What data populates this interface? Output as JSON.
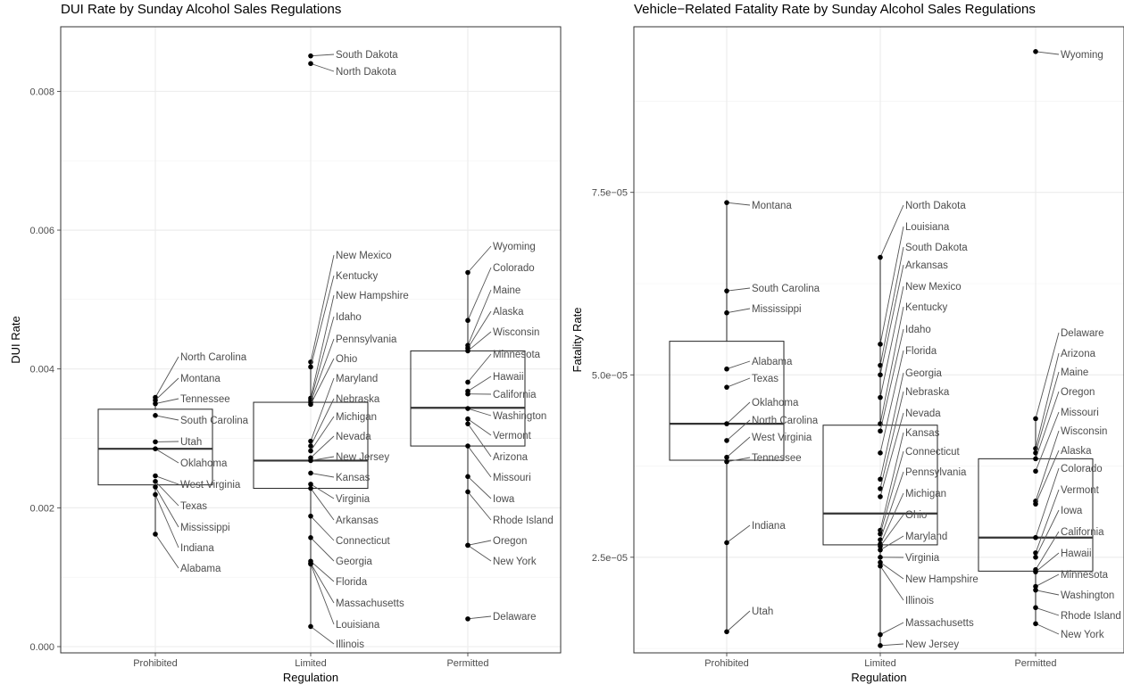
{
  "chart_data": [
    {
      "type": "boxplot",
      "title": "DUI Rate by Sunday Alcohol Sales Regulations",
      "xlabel": "Regulation",
      "ylabel": "DUI Rate",
      "categories": [
        "Prohibited",
        "Limited",
        "Permitted"
      ],
      "ylim": [
        -9e-05,
        0.00893
      ],
      "yticks": [
        {
          "value": 0.0,
          "label": "0.000"
        },
        {
          "value": 0.002,
          "label": "0.002"
        },
        {
          "value": 0.004,
          "label": "0.004"
        },
        {
          "value": 0.006,
          "label": "0.006"
        },
        {
          "value": 0.008,
          "label": "0.008"
        }
      ],
      "boxes": [
        {
          "category": "Prohibited",
          "q1": 0.00233,
          "median": 0.00285,
          "q3": 0.00342,
          "whisker_low": 0.00162,
          "whisker_high": 0.00359
        },
        {
          "category": "Limited",
          "q1": 0.00228,
          "median": 0.00268,
          "q3": 0.00352,
          "whisker_low": 0.00029,
          "whisker_high": 0.0041
        },
        {
          "category": "Permitted",
          "q1": 0.00289,
          "median": 0.00344,
          "q3": 0.00426,
          "whisker_low": 0.00146,
          "whisker_high": 0.00539
        }
      ],
      "points": [
        {
          "category": "Prohibited",
          "label": "North Carolina",
          "value": 0.00359
        },
        {
          "category": "Prohibited",
          "label": "Montana",
          "value": 0.00355
        },
        {
          "category": "Prohibited",
          "label": "Tennessee",
          "value": 0.0035
        },
        {
          "category": "Prohibited",
          "label": "South Carolina",
          "value": 0.00333
        },
        {
          "category": "Prohibited",
          "label": "Utah",
          "value": 0.00295
        },
        {
          "category": "Prohibited",
          "label": "Oklahoma",
          "value": 0.00285
        },
        {
          "category": "Prohibited",
          "label": "West Virginia",
          "value": 0.00246
        },
        {
          "category": "Prohibited",
          "label": "Texas",
          "value": 0.00238
        },
        {
          "category": "Prohibited",
          "label": "Mississippi",
          "value": 0.0023
        },
        {
          "category": "Prohibited",
          "label": "Indiana",
          "value": 0.00219
        },
        {
          "category": "Prohibited",
          "label": "Alabama",
          "value": 0.00162
        },
        {
          "category": "Limited",
          "label": "South Dakota",
          "value": 0.00851
        },
        {
          "category": "Limited",
          "label": "North Dakota",
          "value": 0.0084
        },
        {
          "category": "Limited",
          "label": "New Mexico",
          "value": 0.0041
        },
        {
          "category": "Limited",
          "label": "Kentucky",
          "value": 0.00403
        },
        {
          "category": "Limited",
          "label": "New Hampshire",
          "value": 0.00358
        },
        {
          "category": "Limited",
          "label": "Idaho",
          "value": 0.00355
        },
        {
          "category": "Limited",
          "label": "Pennsylvania",
          "value": 0.00352
        },
        {
          "category": "Limited",
          "label": "Ohio",
          "value": 0.00349
        },
        {
          "category": "Limited",
          "label": "Maryland",
          "value": 0.00296
        },
        {
          "category": "Limited",
          "label": "Nebraska",
          "value": 0.00289
        },
        {
          "category": "Limited",
          "label": "Michigan",
          "value": 0.00282
        },
        {
          "category": "Limited",
          "label": "Nevada",
          "value": 0.00272
        },
        {
          "category": "Limited",
          "label": "New Jersey",
          "value": 0.00268
        },
        {
          "category": "Limited",
          "label": "Kansas",
          "value": 0.0025
        },
        {
          "category": "Limited",
          "label": "Virginia",
          "value": 0.00234
        },
        {
          "category": "Limited",
          "label": "Arkansas",
          "value": 0.00228
        },
        {
          "category": "Limited",
          "label": "Connecticut",
          "value": 0.00188
        },
        {
          "category": "Limited",
          "label": "Georgia",
          "value": 0.00157
        },
        {
          "category": "Limited",
          "label": "Florida",
          "value": 0.00123
        },
        {
          "category": "Limited",
          "label": "Massachusetts",
          "value": 0.0012
        },
        {
          "category": "Limited",
          "label": "Louisiana",
          "value": 0.00119
        },
        {
          "category": "Limited",
          "label": "Illinois",
          "value": 0.00029
        },
        {
          "category": "Permitted",
          "label": "Wyoming",
          "value": 0.00539
        },
        {
          "category": "Permitted",
          "label": "Colorado",
          "value": 0.0047
        },
        {
          "category": "Permitted",
          "label": "Maine",
          "value": 0.00434
        },
        {
          "category": "Permitted",
          "label": "Alaska",
          "value": 0.0043
        },
        {
          "category": "Permitted",
          "label": "Wisconsin",
          "value": 0.00426
        },
        {
          "category": "Permitted",
          "label": "Minnesota",
          "value": 0.00381
        },
        {
          "category": "Permitted",
          "label": "Hawaii",
          "value": 0.00368
        },
        {
          "category": "Permitted",
          "label": "California",
          "value": 0.00364
        },
        {
          "category": "Permitted",
          "label": "Washington",
          "value": 0.00343
        },
        {
          "category": "Permitted",
          "label": "Vermont",
          "value": 0.00328
        },
        {
          "category": "Permitted",
          "label": "Arizona",
          "value": 0.00321
        },
        {
          "category": "Permitted",
          "label": "Missouri",
          "value": 0.00289
        },
        {
          "category": "Permitted",
          "label": "Iowa",
          "value": 0.00245
        },
        {
          "category": "Permitted",
          "label": "Rhode Island",
          "value": 0.00223
        },
        {
          "category": "Permitted",
          "label": "Oregon",
          "value": 0.00146
        },
        {
          "category": "Permitted",
          "label": "New York",
          "value": 0.00146
        },
        {
          "category": "Permitted",
          "label": "Delaware",
          "value": 0.0004
        }
      ]
    },
    {
      "type": "boxplot",
      "title": "Vehicle−Related Fatality Rate by Sunday Alcohol Sales Regulations",
      "xlabel": "Regulation",
      "ylabel": "Fatality Rate",
      "categories": [
        "Prohibited",
        "Limited",
        "Permitted"
      ],
      "ylim": [
        1.19e-05,
        9.77e-05
      ],
      "yticks": [
        {
          "value": 2.5e-05,
          "label": "2.5e−05"
        },
        {
          "value": 5e-05,
          "label": "5.0e−05"
        },
        {
          "value": 7.5e-05,
          "label": "7.5e−05"
        }
      ],
      "boxes": [
        {
          "category": "Prohibited",
          "q1": 3.83e-05,
          "median": 4.33e-05,
          "q3": 5.46e-05,
          "whisker_low": 1.48e-05,
          "whisker_high": 7.36e-05
        },
        {
          "category": "Limited",
          "q1": 2.67e-05,
          "median": 3.1e-05,
          "q3": 4.31e-05,
          "whisker_low": 1.29e-05,
          "whisker_high": 6.61e-05
        },
        {
          "category": "Permitted",
          "q1": 2.31e-05,
          "median": 2.77e-05,
          "q3": 3.85e-05,
          "whisker_low": 1.59e-05,
          "whisker_high": 4.4e-05
        }
      ],
      "points": [
        {
          "category": "Prohibited",
          "label": "Montana",
          "value": 7.36e-05
        },
        {
          "category": "Prohibited",
          "label": "South Carolina",
          "value": 6.15e-05
        },
        {
          "category": "Prohibited",
          "label": "Mississippi",
          "value": 5.85e-05
        },
        {
          "category": "Prohibited",
          "label": "Alabama",
          "value": 5.08e-05
        },
        {
          "category": "Prohibited",
          "label": "Texas",
          "value": 4.83e-05
        },
        {
          "category": "Prohibited",
          "label": "Oklahoma",
          "value": 4.33e-05
        },
        {
          "category": "Prohibited",
          "label": "North Carolina",
          "value": 4.1e-05
        },
        {
          "category": "Prohibited",
          "label": "West Virginia",
          "value": 3.87e-05
        },
        {
          "category": "Prohibited",
          "label": "Tennessee",
          "value": 3.81e-05
        },
        {
          "category": "Prohibited",
          "label": "Indiana",
          "value": 2.7e-05
        },
        {
          "category": "Prohibited",
          "label": "Utah",
          "value": 1.48e-05
        },
        {
          "category": "Limited",
          "label": "North Dakota",
          "value": 6.61e-05
        },
        {
          "category": "Limited",
          "label": "Louisiana",
          "value": 5.42e-05
        },
        {
          "category": "Limited",
          "label": "South Dakota",
          "value": 5.13e-05
        },
        {
          "category": "Limited",
          "label": "Arkansas",
          "value": 5e-05
        },
        {
          "category": "Limited",
          "label": "New Mexico",
          "value": 4.69e-05
        },
        {
          "category": "Limited",
          "label": "Kentucky",
          "value": 4.33e-05
        },
        {
          "category": "Limited",
          "label": "Idaho",
          "value": 4.23e-05
        },
        {
          "category": "Limited",
          "label": "Florida",
          "value": 3.93e-05
        },
        {
          "category": "Limited",
          "label": "Georgia",
          "value": 3.57e-05
        },
        {
          "category": "Limited",
          "label": "Nebraska",
          "value": 3.44e-05
        },
        {
          "category": "Limited",
          "label": "Nevada",
          "value": 3.33e-05
        },
        {
          "category": "Limited",
          "label": "Kansas",
          "value": 2.87e-05
        },
        {
          "category": "Limited",
          "label": "Connecticut",
          "value": 2.82e-05
        },
        {
          "category": "Limited",
          "label": "Pennsylvania",
          "value": 2.74e-05
        },
        {
          "category": "Limited",
          "label": "Michigan",
          "value": 2.68e-05
        },
        {
          "category": "Limited",
          "label": "Ohio",
          "value": 2.65e-05
        },
        {
          "category": "Limited",
          "label": "Maryland",
          "value": 2.6e-05
        },
        {
          "category": "Limited",
          "label": "Virginia",
          "value": 2.5e-05
        },
        {
          "category": "Limited",
          "label": "New Hampshire",
          "value": 2.43e-05
        },
        {
          "category": "Limited",
          "label": "Illinois",
          "value": 2.38e-05
        },
        {
          "category": "Limited",
          "label": "Massachusetts",
          "value": 1.44e-05
        },
        {
          "category": "Limited",
          "label": "New Jersey",
          "value": 1.29e-05
        },
        {
          "category": "Permitted",
          "label": "Delaware",
          "value": 4.4e-05
        },
        {
          "category": "Permitted",
          "label": "Arizona",
          "value": 3.99e-05
        },
        {
          "category": "Permitted",
          "label": "Maine",
          "value": 3.93e-05
        },
        {
          "category": "Permitted",
          "label": "Oregon",
          "value": 3.85e-05
        },
        {
          "category": "Permitted",
          "label": "Missouri",
          "value": 3.68e-05
        },
        {
          "category": "Permitted",
          "label": "Wisconsin",
          "value": 3.27e-05
        },
        {
          "category": "Permitted",
          "label": "Alaska",
          "value": 3.23e-05
        },
        {
          "category": "Permitted",
          "label": "Colorado",
          "value": 2.77e-05
        },
        {
          "category": "Permitted",
          "label": "Vermont",
          "value": 2.56e-05
        },
        {
          "category": "Permitted",
          "label": "Iowa",
          "value": 2.5e-05
        },
        {
          "category": "Permitted",
          "label": "California",
          "value": 2.33e-05
        },
        {
          "category": "Permitted",
          "label": "Hawaii",
          "value": 2.3e-05
        },
        {
          "category": "Permitted",
          "label": "Minnesota",
          "value": 2.1e-05
        },
        {
          "category": "Permitted",
          "label": "Washington",
          "value": 2.05e-05
        },
        {
          "category": "Permitted",
          "label": "Rhode Island",
          "value": 1.81e-05
        },
        {
          "category": "Permitted",
          "label": "New York",
          "value": 1.59e-05
        },
        {
          "category": "Permitted",
          "label": "Wyoming",
          "value": 9.43e-05
        }
      ]
    }
  ]
}
